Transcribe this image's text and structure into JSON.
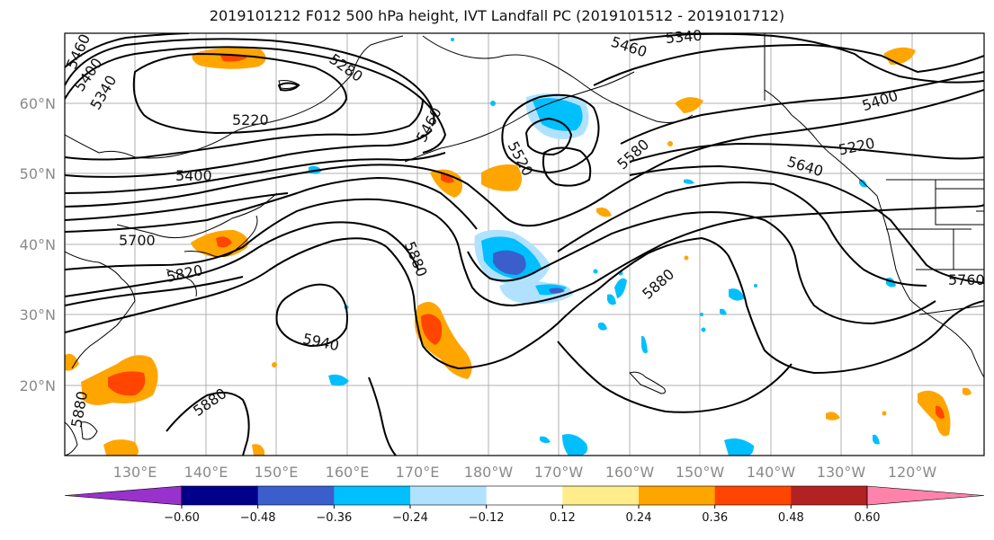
{
  "title": "2019101212 F012 500 hPa height, IVT Landfall PC (2019101512 - 2019101712)",
  "lat_labels": [
    "60°N",
    "50°N",
    "40°N",
    "30°N",
    "20°N"
  ],
  "lon_labels": [
    "130°E",
    "140°E",
    "150°E",
    "160°E",
    "170°E",
    "180°W",
    "170°W",
    "160°W",
    "150°W",
    "140°W",
    "130°W",
    "120°W"
  ],
  "contour_labels": [
    "5460",
    "5400",
    "5340",
    "5280",
    "5220",
    "5400",
    "5460",
    "5340",
    "5460",
    "5400",
    "5220",
    "5520",
    "5580",
    "5640",
    "5700",
    "5820",
    "5880",
    "5880",
    "5940",
    "5880",
    "5760",
    "5880"
  ],
  "colorbar": {
    "colors": [
      "#9932cc",
      "#00008b",
      "#3a5fcd",
      "#00bfff",
      "#b0e2ff",
      "#ffffff",
      "#ffec8b",
      "#ffa500",
      "#ff4500",
      "#b22222",
      "#ff82ab"
    ],
    "tick_labels": [
      "−0.60",
      "−0.48",
      "−0.36",
      "−0.24",
      "−0.12",
      "0.12",
      "0.24",
      "0.36",
      "0.48",
      "0.60"
    ]
  },
  "colors": {
    "frame": "#000000",
    "grid": "#b0b0b0",
    "tick_label": "#8a8a8a"
  }
}
